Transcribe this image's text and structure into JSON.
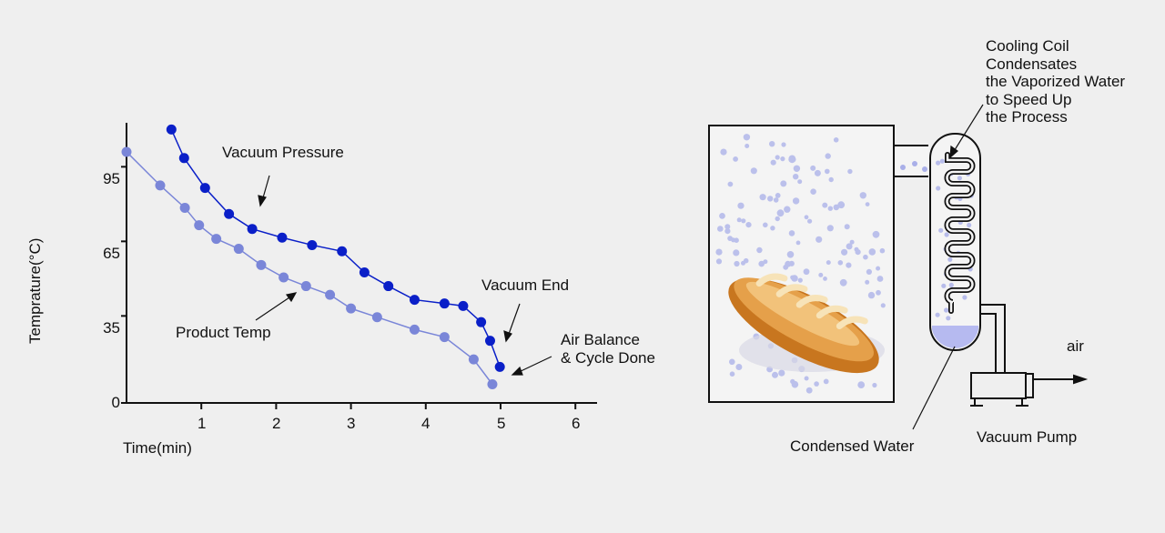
{
  "chart_data": {
    "type": "line",
    "xlabel": "Time(min)",
    "ylabel": "Temprature(°C)",
    "xlim": [
      0,
      6.3
    ],
    "ylim": [
      0,
      110
    ],
    "x_ticks": [
      "1",
      "2",
      "3",
      "4",
      "5",
      "6"
    ],
    "y_ticks": [
      "0",
      "35",
      "65",
      "95"
    ],
    "series": [
      {
        "name": "Vacuum Pressure",
        "color": "#0a1fc8",
        "x": [
          0.6,
          0.77,
          1.05,
          1.37,
          1.68,
          2.08,
          2.48,
          2.88,
          3.18,
          3.5,
          3.85,
          4.25,
          4.5,
          4.74,
          4.86,
          4.99
        ],
        "y": [
          110,
          98.5,
          86.5,
          76,
          70,
          66.5,
          63.5,
          61,
          52.5,
          47,
          41.5,
          40,
          39,
          32.5,
          25,
          14.5
        ]
      },
      {
        "name": "Product Temp",
        "color": "#7a86d8",
        "x": [
          0,
          0.45,
          0.78,
          0.97,
          1.2,
          1.5,
          1.8,
          2.1,
          2.4,
          2.72,
          3.0,
          3.35,
          3.85,
          4.25,
          4.64,
          4.89
        ],
        "y": [
          101,
          87.5,
          78.5,
          71.5,
          66,
          62,
          55.5,
          50.5,
          47,
          43.5,
          38,
          34.5,
          29.5,
          26.5,
          17.5,
          7.5
        ]
      }
    ]
  },
  "annotations": {
    "vacuum_pressure": "Vacuum Pressure",
    "product_temp": "Product Temp",
    "vacuum_end": "Vacuum End",
    "air_balance_line1": "Air Balance",
    "air_balance_line2": "& Cycle Done"
  },
  "diagram": {
    "cooling_coil_lines": [
      "Cooling Coil",
      "Condensates",
      "the Vaporized Water",
      "to Speed Up",
      "the Process"
    ],
    "condensed_water": "Condensed Water",
    "vacuum_pump": "Vacuum Pump",
    "air": "air"
  }
}
